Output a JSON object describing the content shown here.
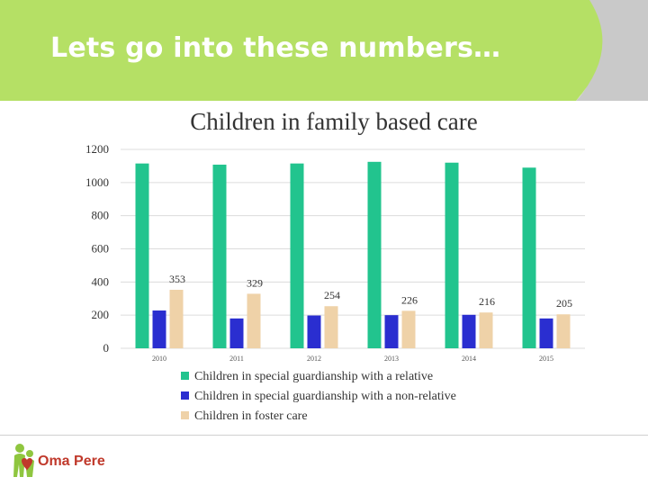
{
  "header": {
    "title": "Lets go into these numbers…"
  },
  "logo": {
    "text": "Oma Pere"
  },
  "colors": {
    "header_green": "#b5e065",
    "header_gray": "#c9c9c9",
    "series_relative": "#22c48e",
    "series_nonrelative": "#2a2ed0",
    "series_foster": "#efd2a8",
    "logo_red": "#c0392b",
    "logo_green": "#8fc63f"
  },
  "chart_data": {
    "type": "bar",
    "title": "Children in family based care",
    "xlabel": "",
    "ylabel": "",
    "categories": [
      "2010",
      "2011",
      "2012",
      "2013",
      "2014",
      "2015"
    ],
    "ylim": [
      0,
      1200
    ],
    "yticks": [
      0,
      200,
      400,
      600,
      800,
      1000,
      1200
    ],
    "grid": true,
    "legend_position": "bottom",
    "series": [
      {
        "name": "Children in special guardianship with a relative",
        "values": [
          1115,
          1108,
          1115,
          1125,
          1120,
          1090
        ]
      },
      {
        "name": "Children in special guardianship with a non-relative",
        "values": [
          228,
          180,
          198,
          200,
          202,
          180
        ]
      },
      {
        "name": "Children in foster care",
        "values": [
          353,
          329,
          254,
          226,
          216,
          205
        ],
        "data_labels": [
          "353",
          "329",
          "254",
          "226",
          "216",
          "205"
        ]
      }
    ]
  }
}
